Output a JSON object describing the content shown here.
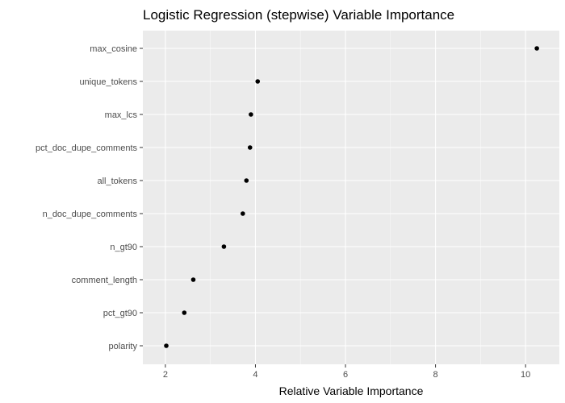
{
  "chart_data": {
    "type": "scatter",
    "title": "Logistic Regression (stepwise) Variable Importance",
    "xlabel": "Relative Variable Importance",
    "ylabel": "",
    "xlim": [
      1.5,
      10.75
    ],
    "x_ticks": [
      2,
      4,
      6,
      8,
      10
    ],
    "grid": true,
    "legend": "none",
    "colors": {
      "panel_bg": "#ebebeb",
      "grid_major": "#ffffff",
      "point": "#000000"
    },
    "categories": [
      "max_cosine",
      "unique_tokens",
      "max_lcs",
      "pct_doc_dupe_comments",
      "all_tokens",
      "n_doc_dupe_comments",
      "n_gt90",
      "comment_length",
      "pct_gt90",
      "polarity"
    ],
    "values": [
      10.25,
      4.05,
      3.9,
      3.88,
      3.8,
      3.72,
      3.3,
      2.62,
      2.42,
      2.02
    ]
  }
}
